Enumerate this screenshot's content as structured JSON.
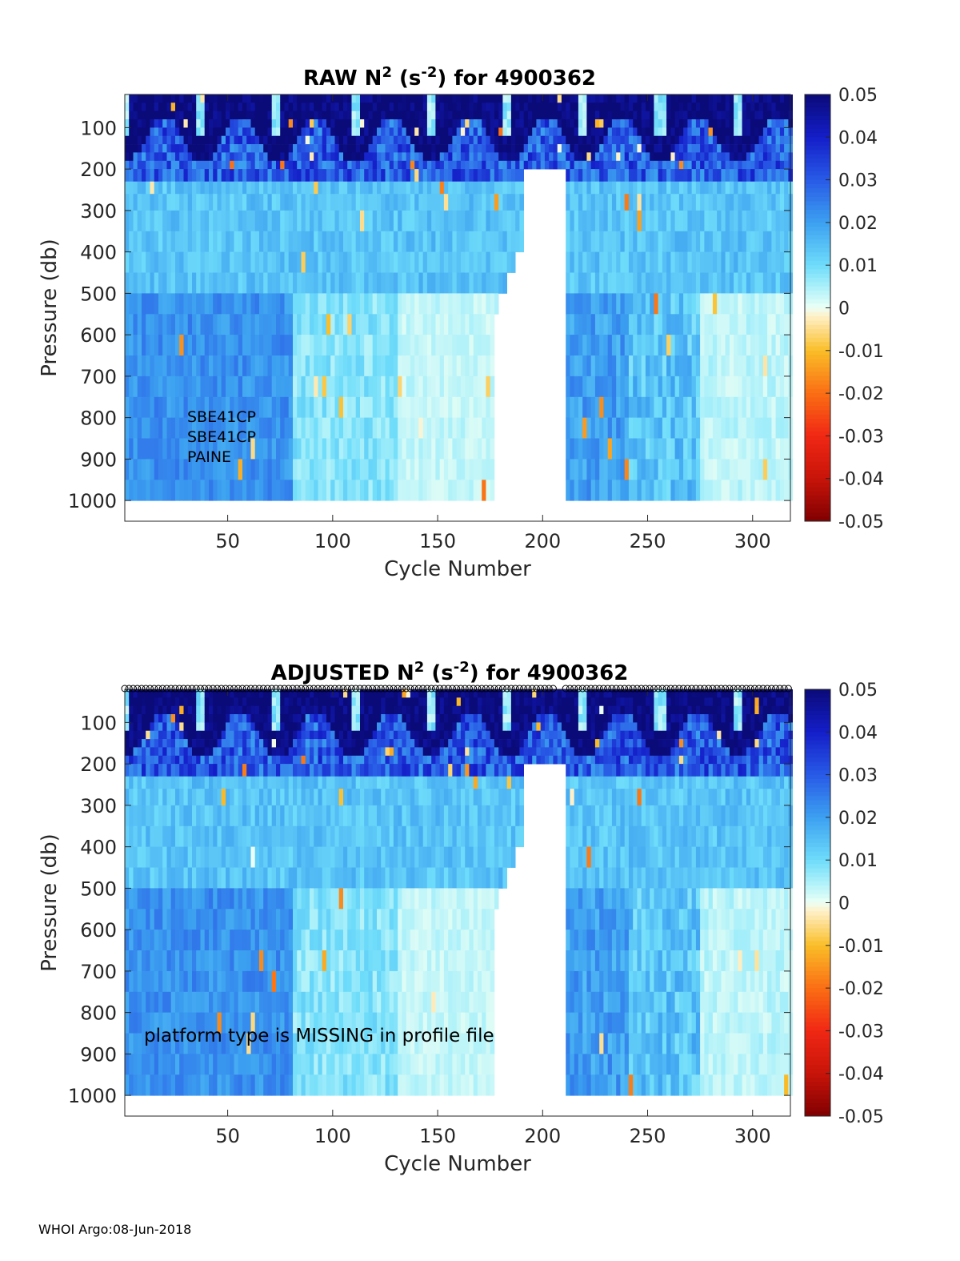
{
  "chart_data": [
    {
      "type": "heatmap",
      "title": {
        "prefix": "RAW N",
        "sup1": "2",
        "mid": " (s",
        "sup2": "-2",
        "suffix": ") for 4900362"
      },
      "xlabel": "Cycle Number",
      "ylabel": "Pressure (db)",
      "xlim": [
        1,
        318
      ],
      "ylim": [
        1050,
        20
      ],
      "xticks": [
        50,
        100,
        150,
        200,
        250,
        300
      ],
      "yticks": [
        100,
        200,
        300,
        400,
        500,
        600,
        700,
        800,
        900,
        1000
      ],
      "colorbar": {
        "range": [
          -0.05,
          0.05
        ],
        "ticks": [
          "0.05",
          "0.04",
          "0.03",
          "0.02",
          "0.01",
          "0",
          "-0.01",
          "-0.02",
          "-0.03",
          "-0.04",
          "-0.05"
        ]
      },
      "annotations": [
        "SBE41CP",
        "SBE41CP",
        "PAINE"
      ],
      "gap_cycles": [
        190,
        210
      ],
      "profile_markers": false
    },
    {
      "type": "heatmap",
      "title": {
        "prefix": "ADJUSTED N",
        "sup1": "2",
        "mid": " (s",
        "sup2": "-2",
        "suffix": ") for 4900362"
      },
      "xlabel": "Cycle Number",
      "ylabel": "Pressure (db)",
      "xlim": [
        1,
        318
      ],
      "ylim": [
        1050,
        20
      ],
      "xticks": [
        50,
        100,
        150,
        200,
        250,
        300
      ],
      "yticks": [
        100,
        200,
        300,
        400,
        500,
        600,
        700,
        800,
        900,
        1000
      ],
      "colorbar": {
        "range": [
          -0.05,
          0.05
        ],
        "ticks": [
          "0.05",
          "0.04",
          "0.03",
          "0.02",
          "0.01",
          "0",
          "-0.01",
          "-0.02",
          "-0.03",
          "-0.04",
          "-0.05"
        ]
      },
      "annotations": [
        "platform type is MISSING in profile file"
      ],
      "gap_cycles": [
        190,
        210
      ],
      "profile_markers": true
    }
  ],
  "footer": "WHOI Argo:08-Jun-2018"
}
